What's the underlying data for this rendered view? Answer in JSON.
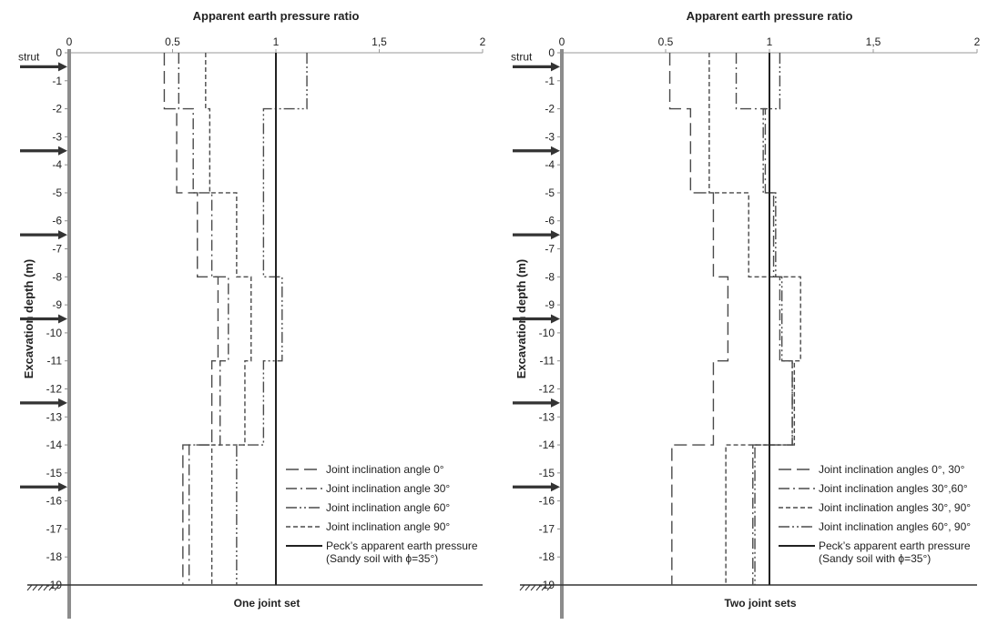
{
  "chart_data": [
    {
      "type": "line",
      "title": "One joint set",
      "xlabel": "Apparent earth pressure ratio",
      "ylabel": "Excavation depth (m)",
      "xlim": [
        0,
        2
      ],
      "ylim": [
        0,
        -19
      ],
      "x_ticks": [
        "0",
        "0.5",
        "1",
        "1,5",
        "2"
      ],
      "y_ticks": [
        "0",
        "-1",
        "-2",
        "-3",
        "-4",
        "-5",
        "-6",
        "-7",
        "-8",
        "-9",
        "-10",
        "-11",
        "-12",
        "-13",
        "-14",
        "-15",
        "-16",
        "-17",
        "-18",
        "-19"
      ],
      "strut_label": "strut",
      "strut_depths": [
        -0.5,
        -3.5,
        -6.5,
        -9.5,
        -12.5,
        -15.5
      ],
      "ground_depth": -19,
      "legend_position": "right",
      "series": [
        {
          "name": "Joint inclination angle 0°",
          "style": "longdash",
          "segments": [
            {
              "x": 0.46,
              "y_from": 0,
              "y_to": -2
            },
            {
              "x": 0.52,
              "y_from": -2,
              "y_to": -5
            },
            {
              "x": 0.62,
              "y_from": -5,
              "y_to": -8
            },
            {
              "x": 0.72,
              "y_from": -8,
              "y_to": -11
            },
            {
              "x": 0.69,
              "y_from": -11,
              "y_to": -14
            },
            {
              "x": 0.55,
              "y_from": -14,
              "y_to": -19
            }
          ]
        },
        {
          "name": "Joint inclination angle 30°",
          "style": "dashdot",
          "segments": [
            {
              "x": 0.53,
              "y_from": 0,
              "y_to": -2
            },
            {
              "x": 0.6,
              "y_from": -2,
              "y_to": -5
            },
            {
              "x": 0.69,
              "y_from": -5,
              "y_to": -8
            },
            {
              "x": 0.77,
              "y_from": -8,
              "y_to": -11
            },
            {
              "x": 0.73,
              "y_from": -11,
              "y_to": -14
            },
            {
              "x": 0.58,
              "y_from": -14,
              "y_to": -19
            }
          ]
        },
        {
          "name": "Joint inclination angle 60°",
          "style": "dashdotdot",
          "segments": [
            {
              "x": 1.15,
              "y_from": 0,
              "y_to": -2
            },
            {
              "x": 0.94,
              "y_from": -2,
              "y_to": -8
            },
            {
              "x": 1.03,
              "y_from": -8,
              "y_to": -11
            },
            {
              "x": 0.94,
              "y_from": -11,
              "y_to": -14
            },
            {
              "x": 0.81,
              "y_from": -14,
              "y_to": -19
            }
          ]
        },
        {
          "name": "Joint inclination angle 90°",
          "style": "shortdash",
          "segments": [
            {
              "x": 0.66,
              "y_from": 0,
              "y_to": -2
            },
            {
              "x": 0.68,
              "y_from": -2,
              "y_to": -5
            },
            {
              "x": 0.81,
              "y_from": -5,
              "y_to": -8
            },
            {
              "x": 0.88,
              "y_from": -8,
              "y_to": -11
            },
            {
              "x": 0.85,
              "y_from": -11,
              "y_to": -14
            },
            {
              "x": 0.69,
              "y_from": -14,
              "y_to": -19
            }
          ]
        },
        {
          "name": "Peck’s apparent earth pressure",
          "name_line2": "(Sandy soil with ϕ=35°)",
          "style": "solid",
          "segments": [
            {
              "x": 1.0,
              "y_from": 0,
              "y_to": -19
            }
          ]
        }
      ]
    },
    {
      "type": "line",
      "title": "Two joint sets",
      "xlabel": "Apparent earth pressure ratio",
      "ylabel": "Excavation depth (m)",
      "xlim": [
        0,
        2
      ],
      "ylim": [
        0,
        -19
      ],
      "x_ticks": [
        "0",
        "0.5",
        "1",
        "1,5",
        "2"
      ],
      "y_ticks": [
        "0",
        "-1",
        "-2",
        "-3",
        "-4",
        "-5",
        "-6",
        "-7",
        "-8",
        "-9",
        "-10",
        "-11",
        "-12",
        "-13",
        "-14",
        "-15",
        "-16",
        "-17",
        "-18",
        "-19"
      ],
      "strut_label": "strut",
      "strut_depths": [
        -0.5,
        -3.5,
        -6.5,
        -9.5,
        -12.5,
        -15.5
      ],
      "ground_depth": -19,
      "legend_position": "right",
      "series": [
        {
          "name": "Joint inclination angles 0°, 30°",
          "style": "longdash",
          "segments": [
            {
              "x": 0.52,
              "y_from": 0,
              "y_to": -2
            },
            {
              "x": 0.62,
              "y_from": -2,
              "y_to": -5
            },
            {
              "x": 0.73,
              "y_from": -5,
              "y_to": -8
            },
            {
              "x": 0.8,
              "y_from": -8,
              "y_to": -11
            },
            {
              "x": 0.73,
              "y_from": -11,
              "y_to": -14
            },
            {
              "x": 0.53,
              "y_from": -14,
              "y_to": -19
            }
          ]
        },
        {
          "name": "Joint inclination angles 30°,60°",
          "style": "dashdot",
          "segments": [
            {
              "x": 0.84,
              "y_from": 0,
              "y_to": -2
            },
            {
              "x": 0.98,
              "y_from": -2,
              "y_to": -5
            },
            {
              "x": 1.02,
              "y_from": -5,
              "y_to": -8
            },
            {
              "x": 1.05,
              "y_from": -8,
              "y_to": -11
            },
            {
              "x": 1.11,
              "y_from": -11,
              "y_to": -14
            },
            {
              "x": 0.92,
              "y_from": -14,
              "y_to": -19
            }
          ]
        },
        {
          "name": "Joint inclination angles 30°, 90°",
          "style": "shortdash",
          "segments": [
            {
              "x": 0.71,
              "y_from": 0,
              "y_to": -5
            },
            {
              "x": 0.9,
              "y_from": -5,
              "y_to": -8
            },
            {
              "x": 1.15,
              "y_from": -8,
              "y_to": -11
            },
            {
              "x": 1.12,
              "y_from": -11,
              "y_to": -14
            },
            {
              "x": 0.79,
              "y_from": -14,
              "y_to": -19
            }
          ]
        },
        {
          "name": "Joint inclination angles 60°, 90°",
          "style": "dashdotdot",
          "segments": [
            {
              "x": 1.05,
              "y_from": 0,
              "y_to": -2
            },
            {
              "x": 0.97,
              "y_from": -2,
              "y_to": -5
            },
            {
              "x": 1.03,
              "y_from": -5,
              "y_to": -8
            },
            {
              "x": 1.06,
              "y_from": -8,
              "y_to": -11
            },
            {
              "x": 1.11,
              "y_from": -11,
              "y_to": -14
            },
            {
              "x": 0.93,
              "y_from": -14,
              "y_to": -19
            }
          ]
        },
        {
          "name": "Peck’s apparent earth pressure",
          "name_line2": "(Sandy soil with ϕ=35°)",
          "style": "solid",
          "segments": [
            {
              "x": 1.0,
              "y_from": 0,
              "y_to": -19
            }
          ]
        }
      ]
    }
  ]
}
